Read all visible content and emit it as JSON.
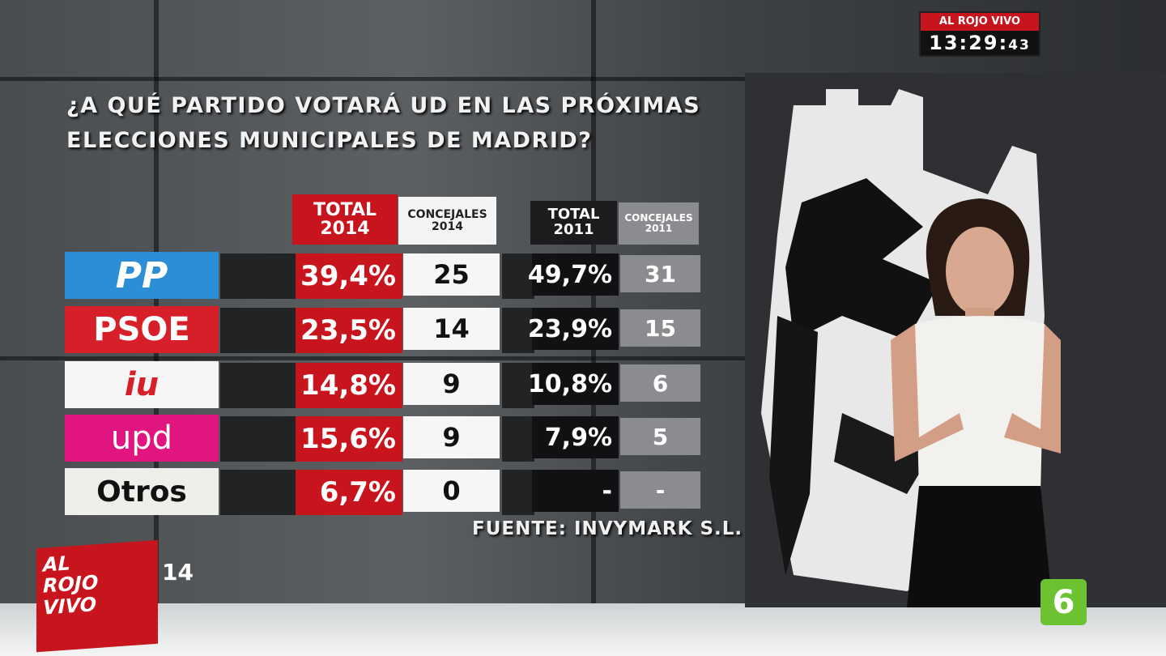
{
  "header": {
    "title_lines": [
      "¿A QUÉ PARTIDO VOTARÁ UD EN LAS PRÓXIMAS",
      "ELECCIONES MUNICIPALES DE MADRID?"
    ]
  },
  "table": {
    "headers": [
      "TOTAL\n2014",
      "CONCEJALES\n2014",
      "TOTAL\n2011",
      "CONCEJALES\n2011"
    ],
    "rows": [
      [
        "PP",
        "39,4%",
        "25",
        "49,7%",
        "31"
      ],
      [
        "PSOE",
        "23,5%",
        "14",
        "23,9%",
        "15"
      ],
      [
        "iu",
        "14,8%",
        "9",
        "10,8%",
        "6"
      ],
      [
        "upd",
        "15,6%",
        "9",
        "7,9%",
        "5"
      ],
      [
        "Otros",
        "6,7%",
        "0",
        "-",
        "-"
      ]
    ]
  },
  "source": "FUENTE: INVYMARK S.L.",
  "broadcast": {
    "show": "AL ROJO VIVO",
    "clock_hm": "13:29",
    "clock_s": "43",
    "logo_lines": [
      "AL",
      "ROJO",
      "VIVO"
    ],
    "year": "14",
    "channel": "6"
  }
}
